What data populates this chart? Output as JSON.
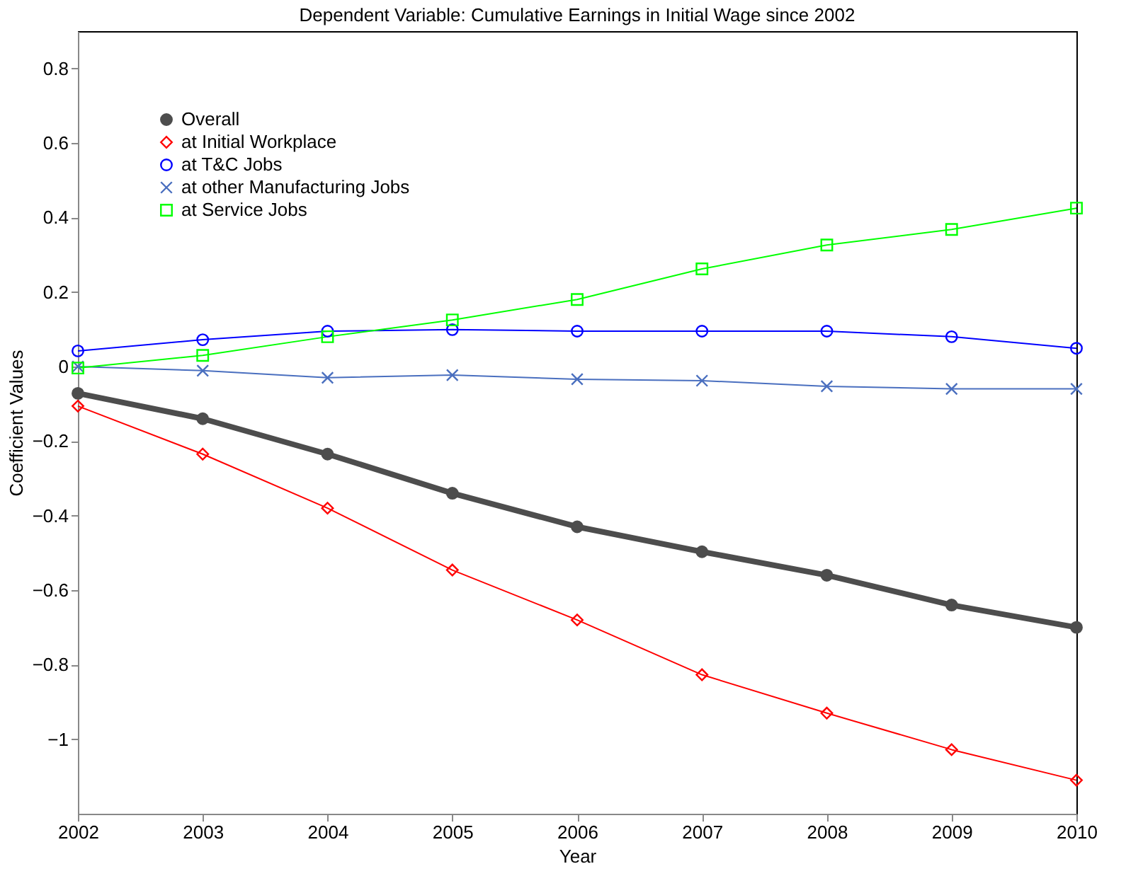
{
  "chart_data": {
    "type": "line",
    "title": "Dependent Variable: Cumulative Earnings in Initial Wage since 2002",
    "xlabel": "Year",
    "ylabel": "Coefficient Values",
    "x": [
      2002,
      2003,
      2004,
      2005,
      2006,
      2007,
      2008,
      2009,
      2010
    ],
    "series": [
      {
        "name": "Overall",
        "color": "#4d4d4d",
        "marker": "circle",
        "values": [
          -0.072,
          -0.14,
          -0.235,
          -0.34,
          -0.43,
          -0.497,
          -0.56,
          -0.64,
          -0.7
        ]
      },
      {
        "name": "at Initial Workplace",
        "color": "#ff0000",
        "marker": "diamond",
        "values": [
          -0.106,
          -0.235,
          -0.38,
          -0.546,
          -0.68,
          -0.827,
          -0.93,
          -1.028,
          -1.11
        ]
      },
      {
        "name": "at T&C Jobs",
        "color": "#0000ff",
        "marker": "circle",
        "values": [
          0.042,
          0.072,
          0.095,
          0.099,
          0.095,
          0.095,
          0.095,
          0.08,
          0.049
        ]
      },
      {
        "name": "at other Manufacturing Jobs",
        "color": "#4a6fbf",
        "marker": "cross",
        "values": [
          0.0,
          -0.011,
          -0.03,
          -0.023,
          -0.034,
          -0.038,
          -0.053,
          -0.06,
          -0.06
        ]
      },
      {
        "name": "at Service Jobs",
        "color": "#00ff00",
        "marker": "square",
        "values": [
          -0.004,
          0.03,
          0.08,
          0.125,
          0.18,
          0.262,
          0.326,
          0.368,
          0.425
        ]
      }
    ],
    "xlim": [
      2002,
      2010
    ],
    "xticks": [
      2002,
      2003,
      2004,
      2005,
      2006,
      2007,
      2008,
      2009,
      2010
    ],
    "ylim": [
      -1.2,
      0.9
    ],
    "yticks": [
      -1,
      -0.8,
      -0.6,
      -0.4,
      -0.2,
      0,
      0.2,
      0.4,
      0.6,
      0.8
    ],
    "grid": false,
    "legend": "top left"
  }
}
